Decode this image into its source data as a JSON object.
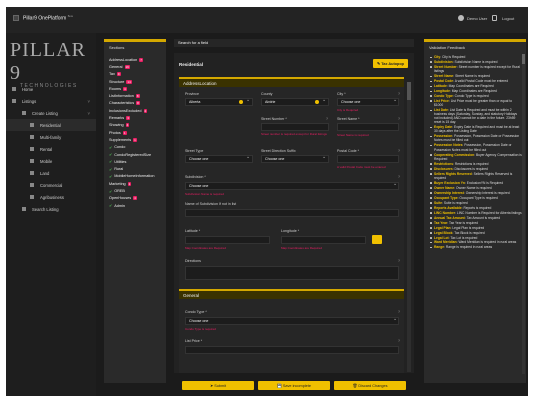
{
  "topbar": {
    "app_title": "Pillar9 OnePlatform",
    "app_tag": "Beta",
    "user_name": "Demo User",
    "logout": "Logout"
  },
  "brand": {
    "name": "PILLAR 9",
    "tagline": "TECHNOLOGIES"
  },
  "nav": [
    {
      "label": "Home",
      "level": 0,
      "icon": "home-icon"
    },
    {
      "label": "Listings",
      "level": 0,
      "icon": "listings-icon",
      "chevron": "˅"
    },
    {
      "label": "Create Listing",
      "level": 1,
      "icon": "create-icon",
      "chevron": "˅"
    },
    {
      "label": "Residential",
      "level": 2,
      "icon": "residential-icon",
      "active": true
    },
    {
      "label": "Multi-family",
      "level": 2,
      "icon": "multifamily-icon"
    },
    {
      "label": "Rental",
      "level": 2,
      "icon": "rental-icon"
    },
    {
      "label": "Mobile",
      "level": 2,
      "icon": "mobile-icon"
    },
    {
      "label": "Land",
      "level": 2,
      "icon": "land-icon"
    },
    {
      "label": "Commercial",
      "level": 2,
      "icon": "commercial-icon"
    },
    {
      "label": "Agribusiness",
      "level": 2,
      "icon": "agribusiness-icon"
    },
    {
      "label": "Search Listing",
      "level": 1,
      "icon": "search-listing-icon"
    }
  ],
  "sections": {
    "title": "Sections",
    "items": [
      {
        "label": "AddressLocation",
        "badge": "7"
      },
      {
        "label": "General",
        "badge": "19"
      },
      {
        "label": "Tax",
        "badge": "9"
      },
      {
        "label": "Structure",
        "badge": "14"
      },
      {
        "label": "Rooms",
        "badge": "4"
      },
      {
        "label": "ListInformation",
        "badge": "8"
      },
      {
        "label": "Characteristics",
        "badge": "8"
      },
      {
        "label": "InclusionsExcluded",
        "badge": "2"
      },
      {
        "label": "Remarks",
        "badge": "3"
      },
      {
        "label": "Showing",
        "badge": "4"
      },
      {
        "label": "Photos",
        "badge": "1"
      },
      {
        "label": "Supplements",
        "badge": "1"
      },
      {
        "label": "Condo",
        "check": true
      },
      {
        "label": "CondoRegisteredSize",
        "check": true
      },
      {
        "label": "Utilities",
        "check": true
      },
      {
        "label": "Rural",
        "check": true
      },
      {
        "label": "MobileHomeInformation",
        "check": true
      },
      {
        "label": "Marketing",
        "badge": "1"
      },
      {
        "label": "OREB",
        "check": true
      },
      {
        "label": "OpenHouses",
        "badge": "4"
      },
      {
        "label": "Admin",
        "check": true
      }
    ]
  },
  "search": {
    "placeholder": "Search for a field"
  },
  "form": {
    "title": "Residential",
    "autopop_label": "Tax Autopop",
    "section_title": "AddressLocation",
    "province": {
      "label": "Province",
      "value": "Alberta"
    },
    "county": {
      "label": "County",
      "value": "Airdrie"
    },
    "city": {
      "label": "City *",
      "value": "Choose one",
      "error": "City is Required"
    },
    "street_number": {
      "label": "Street Number *",
      "error": "Street number is required except for Rural listings"
    },
    "street_name": {
      "label": "Street Name *",
      "error": "Street Name is required"
    },
    "street_type": {
      "label": "Street Type",
      "value": "Choose one"
    },
    "street_suffix": {
      "label": "Street Direction Suffix",
      "value": "Choose one"
    },
    "postal_code": {
      "label": "Postal Code *",
      "error": "A valid Postal Code must be entered"
    },
    "subdivision": {
      "label": "Subdivision *",
      "value": "Choose one",
      "error": "Subdivision Name is required"
    },
    "subdivision_not_in_list": {
      "label": "Name of Subdivision If not in list"
    },
    "latitude": {
      "label": "Latitude *",
      "error": "Map Coordinates are Required"
    },
    "longitude": {
      "label": "Longitude *",
      "error": "Map Coordinates are Required"
    },
    "directions": {
      "label": "Directions"
    },
    "general_title": "General",
    "condo_type": {
      "label": "Condo Type *",
      "value": "Choose one",
      "error": "Condo Type is required"
    },
    "list_price": {
      "label": "List Price *"
    }
  },
  "actions": {
    "submit": "Submit",
    "save": "Save incomplete",
    "discard": "Discard Changes"
  },
  "validation": {
    "title": "Validation Feedback",
    "items": [
      {
        "k": "City",
        "t": "City is Required"
      },
      {
        "k": "Subdivision",
        "t": "Subdivision Name is required"
      },
      {
        "k": "Street Number",
        "t": "Street number is required except for Rural listings"
      },
      {
        "k": "Street Name",
        "t": "Street Name is required"
      },
      {
        "k": "Postal Code",
        "t": "A valid Postal Code must be entered"
      },
      {
        "k": "Latitude",
        "t": "Map Coordinates are Required"
      },
      {
        "k": "Longitude",
        "t": "Map Coordinates are Required"
      },
      {
        "k": "Condo Type",
        "t": "Condo Type is required"
      },
      {
        "k": "List Price",
        "t": "List Price must be greater than or equal to $1000"
      },
      {
        "k": "List Date",
        "t": "List Date is Required and must be within 2 business days (Saturday, Sunday, and statutory Holidays not included) AND cannot be a date in the future. 23h59 reset is 15 day."
      },
      {
        "k": "Expiry Date",
        "t": "Expiry Date is Required and must be at least 30 days after the Listing Date"
      },
      {
        "k": "Possession",
        "t": "Possession, Possession Date or Possession Notes must be filled out"
      },
      {
        "k": "Possession Notes",
        "t": "Possession, Possession Date or Possession Notes must be filled out"
      },
      {
        "k": "Cooperating Commission",
        "t": "Buyer Agency Compensation is Required"
      },
      {
        "k": "Restrictions",
        "t": "Restrictions is required"
      },
      {
        "k": "Disclosures",
        "t": "Disclosures is required"
      },
      {
        "k": "Sellers Rights Reserved",
        "t": "Sellers Rights Reserved is required"
      },
      {
        "k": "Buyer Exclusion Yn",
        "t": "ExclusionYN is Required"
      },
      {
        "k": "Owner Name",
        "t": "Owner Name is required"
      },
      {
        "k": "Ownership Interest",
        "t": "Ownership Interest is required"
      },
      {
        "k": "Occupant Type",
        "t": "Occupant Type is required"
      },
      {
        "k": "Suite",
        "t": "Suite is required"
      },
      {
        "k": "Reports Available",
        "t": "Reports is required"
      },
      {
        "k": "LINC Number",
        "t": "LINC Number is Required for Alberta listings"
      },
      {
        "k": "Annual Tax Amount",
        "t": "Tax Amount is required"
      },
      {
        "k": "Tax Year",
        "t": "Tax Year is required"
      },
      {
        "k": "Legal Plan",
        "t": "Legal Plan is required"
      },
      {
        "k": "Legal Block",
        "t": "Tax Block is required"
      },
      {
        "k": "Legal Lot",
        "t": "Tax Lot is required"
      },
      {
        "k": "Ward Meridian",
        "t": "Ward Meridian is required in rural areas"
      },
      {
        "k": "Range",
        "t": "Range is required in rural areas"
      }
    ]
  }
}
